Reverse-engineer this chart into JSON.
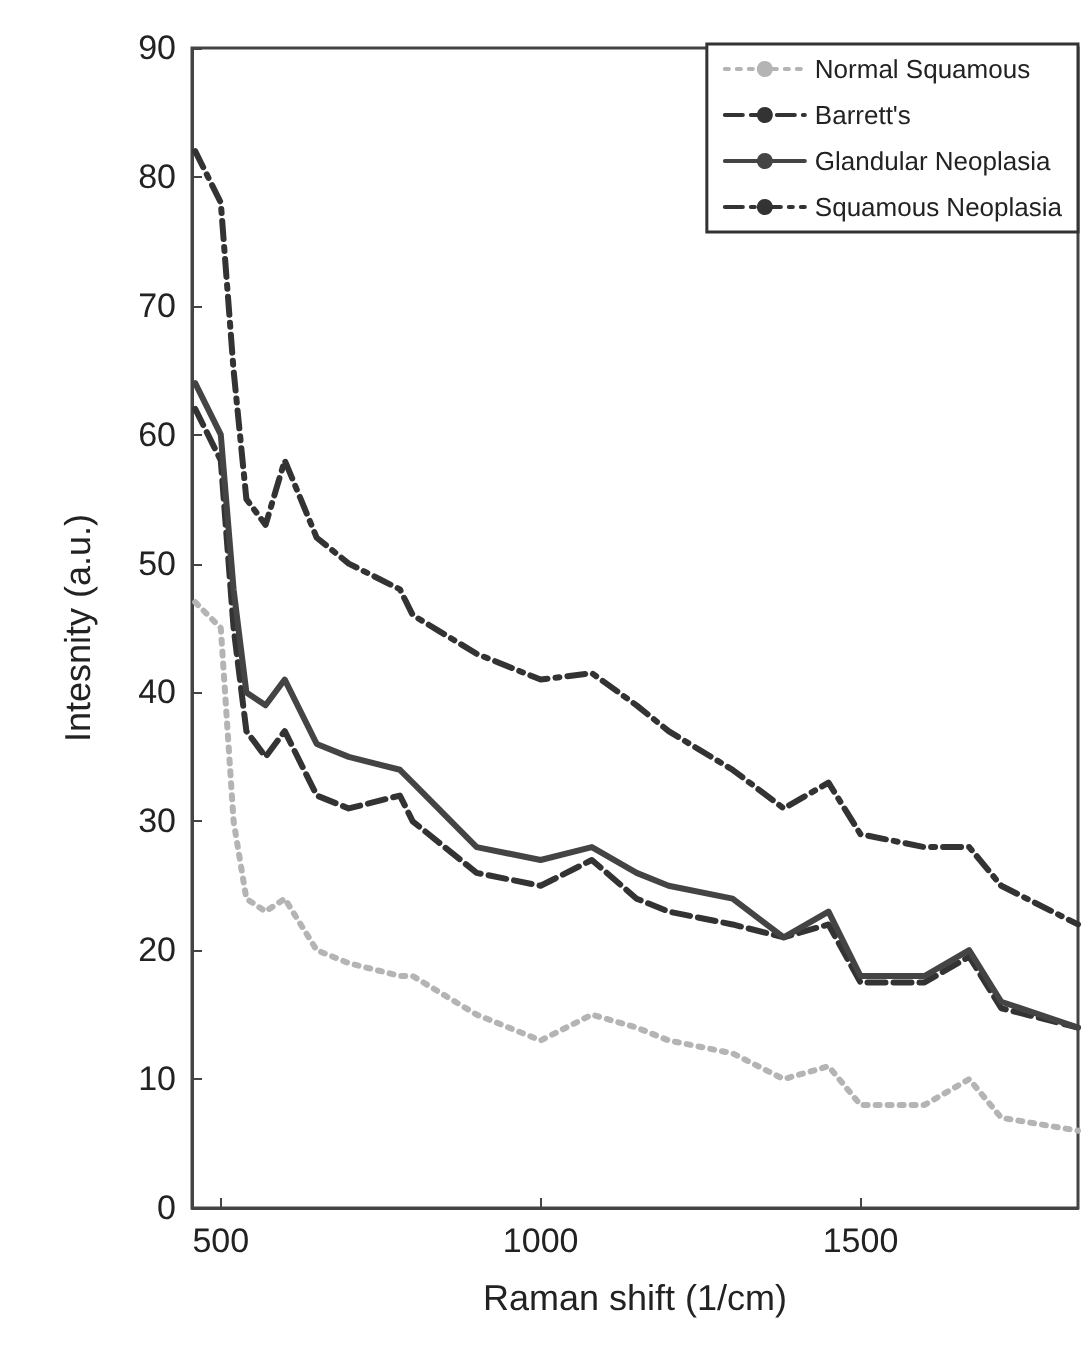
{
  "chart_data": {
    "type": "line",
    "xlabel": "Raman shift (1/cm)",
    "ylabel": "Intesnity (a.u.)",
    "xlim": [
      455,
      1840
    ],
    "xticks": [
      500,
      1000,
      1500
    ],
    "ylim": [
      0,
      90
    ],
    "yticks": [
      0,
      10,
      20,
      30,
      40,
      50,
      60,
      70,
      80,
      90
    ],
    "grid": false,
    "legend": "top right",
    "marker": "none",
    "x": [
      460,
      500,
      520,
      540,
      570,
      600,
      650,
      700,
      780,
      800,
      900,
      1000,
      1080,
      1150,
      1200,
      1300,
      1380,
      1450,
      1500,
      1600,
      1670,
      1720,
      1840
    ],
    "series": [
      {
        "name": "Normal Squamous",
        "color": "#b4b4b4",
        "line_style": "dotted",
        "values": [
          47,
          45,
          30,
          24,
          23,
          24,
          20,
          19,
          18,
          18,
          15,
          13,
          15,
          14,
          13,
          12,
          10,
          11,
          8,
          8,
          10,
          7,
          6
        ]
      },
      {
        "name": "Barrett's",
        "color": "#333333",
        "line_style": "dashed",
        "values": [
          62,
          58,
          45,
          37,
          35,
          37,
          32,
          31,
          32,
          30,
          26,
          25,
          27,
          24,
          23,
          22,
          21,
          22,
          17.5,
          17.5,
          19.5,
          15.5,
          14
        ]
      },
      {
        "name": "Glandular Neoplasia",
        "color": "#444444",
        "line_style": "solid",
        "values": [
          64,
          60,
          48,
          40,
          39,
          41,
          36,
          35,
          34,
          33,
          28,
          27,
          28,
          26,
          25,
          24,
          21,
          23,
          18,
          18,
          20,
          16,
          14
        ]
      },
      {
        "name": "Squamous Neoplasia",
        "color": "#333333",
        "line_style": "dashdot",
        "values": [
          82,
          78,
          65,
          55,
          53,
          58,
          52,
          50,
          48,
          46,
          43,
          41,
          41.5,
          39,
          37,
          34,
          31,
          33,
          29,
          28,
          28,
          25,
          22
        ]
      }
    ]
  }
}
